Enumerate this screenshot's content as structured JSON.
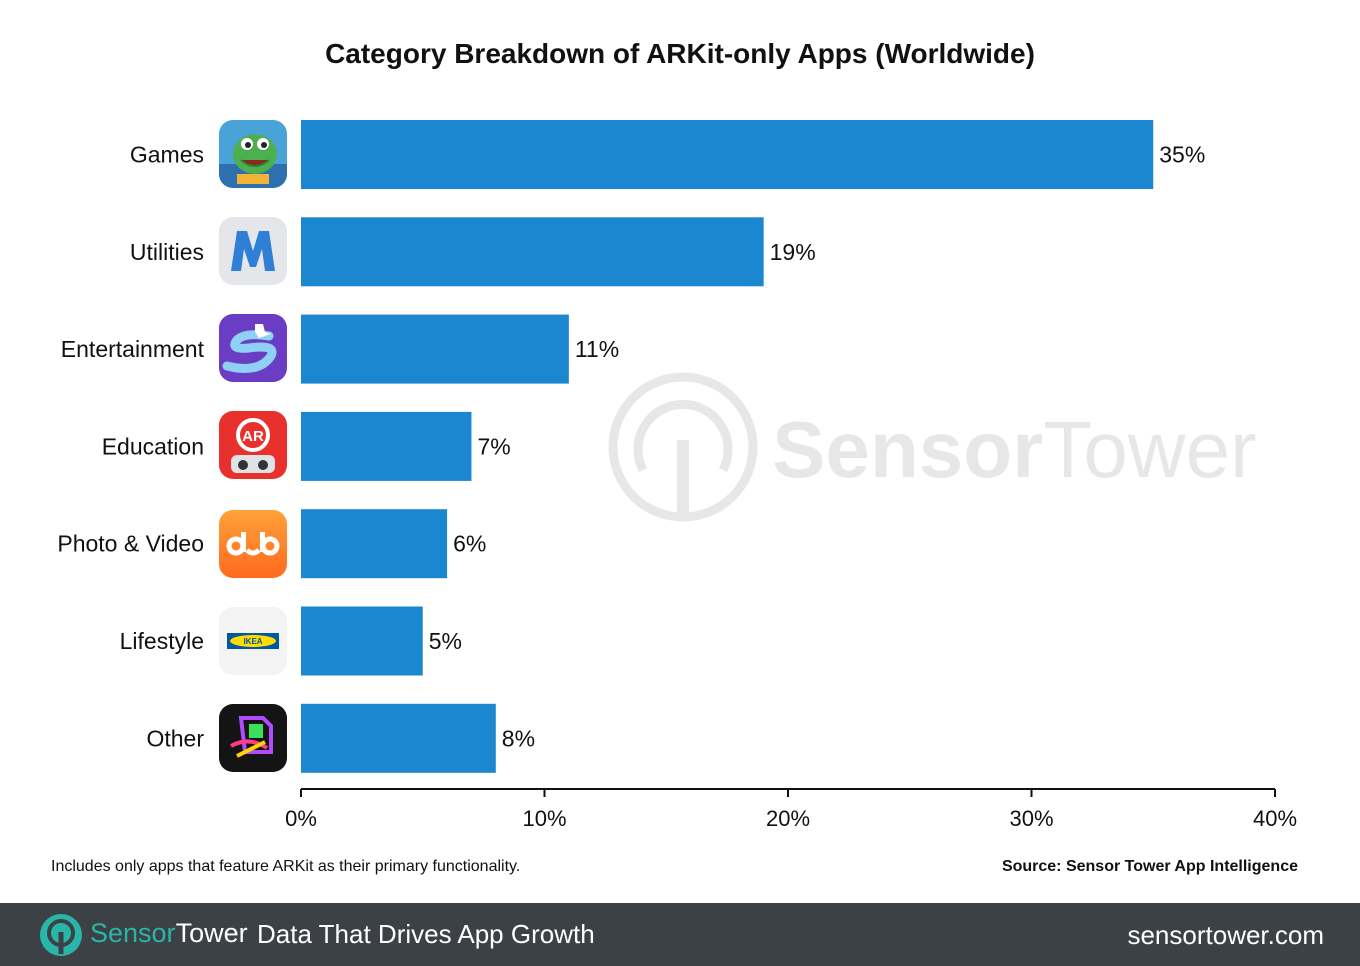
{
  "chart_data": {
    "type": "bar",
    "orientation": "horizontal",
    "title": "Category Breakdown of ARKit-only Apps (Worldwide)",
    "categories": [
      "Games",
      "Utilities",
      "Entertainment",
      "Education",
      "Photo & Video",
      "Lifestyle",
      "Other"
    ],
    "values": [
      35,
      19,
      11,
      7,
      6,
      5,
      8
    ],
    "value_labels": [
      "35%",
      "19%",
      "11%",
      "7%",
      "6%",
      "5%",
      "8%"
    ],
    "xlim": [
      0,
      40
    ],
    "xticks": [
      "0%",
      "10%",
      "20%",
      "30%",
      "40%"
    ],
    "grid": false,
    "bar_color": "#1a87d0",
    "icons": [
      "dinosaur-game-icon",
      "m-letter-icon",
      "slide-ribbon-icon",
      "ar-robot-icon",
      "dub-icon",
      "ikea-icon",
      "geometric-app-icon"
    ]
  },
  "note": "Includes only apps that feature ARKit as their primary functionality.",
  "source": "Source: Sensor Tower App Intelligence",
  "watermark": {
    "brand_part1": "Sensor",
    "brand_part2": "Tower"
  },
  "footer": {
    "brand_part1": "Sensor",
    "brand_part2": "Tower",
    "tagline": "Data That Drives App Growth",
    "site": "sensortower.com"
  }
}
